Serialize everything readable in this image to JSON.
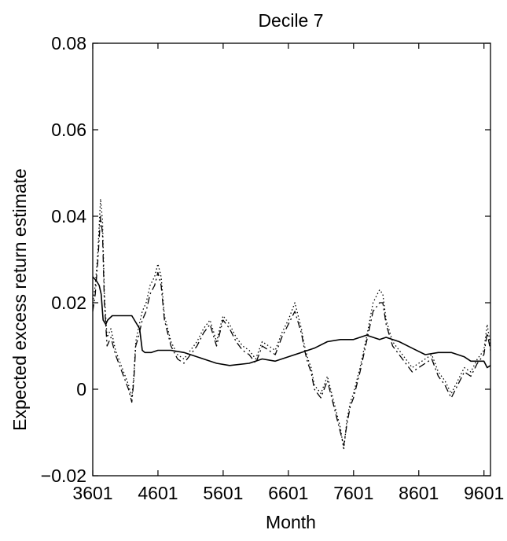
{
  "chart_data": {
    "type": "line",
    "title": "Decile 7",
    "xlabel": "Month",
    "ylabel": "Expected excess return estimate",
    "xlim": [
      3601,
      9701
    ],
    "ylim": [
      -0.02,
      0.08
    ],
    "x_ticks": [
      3601,
      4601,
      5601,
      6601,
      7601,
      8601,
      9601
    ],
    "x_tick_labels": [
      "3601",
      "4601",
      "5601",
      "6601",
      "7601",
      "8601",
      "9601"
    ],
    "y_ticks": [
      -0.02,
      0,
      0.02,
      0.04,
      0.06,
      0.08
    ],
    "y_tick_labels": [
      "−0.02",
      "0",
      "0.02",
      "0.04",
      "0.06",
      "0.08"
    ],
    "grid": false,
    "series": [
      {
        "style": "solid",
        "color": "#000000",
        "x": [
          3601,
          3660,
          3700,
          3730,
          3760,
          3800,
          3830,
          3900,
          4000,
          4100,
          4200,
          4320,
          4360,
          4400,
          4500,
          4600,
          4800,
          5000,
          5100,
          5300,
          5500,
          5700,
          6000,
          6200,
          6400,
          6600,
          6800,
          7000,
          7200,
          7400,
          7600,
          7800,
          8000,
          8100,
          8300,
          8500,
          8700,
          8900,
          9100,
          9300,
          9400,
          9500,
          9600,
          9650,
          9701
        ],
        "y": [
          0.026,
          0.025,
          0.024,
          0.022,
          0.016,
          0.015,
          0.016,
          0.017,
          0.017,
          0.017,
          0.017,
          0.014,
          0.009,
          0.0085,
          0.0085,
          0.009,
          0.009,
          0.0085,
          0.008,
          0.007,
          0.006,
          0.0055,
          0.006,
          0.007,
          0.0065,
          0.0075,
          0.0085,
          0.0095,
          0.011,
          0.0115,
          0.0115,
          0.0125,
          0.0115,
          0.012,
          0.011,
          0.0095,
          0.008,
          0.0085,
          0.0085,
          0.0075,
          0.0065,
          0.0065,
          0.0065,
          0.005,
          0.0055
        ]
      },
      {
        "style": "dash-dot",
        "color": "#000000",
        "x": [
          3601,
          3640,
          3680,
          3720,
          3750,
          3780,
          3820,
          3880,
          3950,
          4050,
          4150,
          4200,
          4230,
          4260,
          4300,
          4360,
          4420,
          4480,
          4550,
          4600,
          4650,
          4700,
          4800,
          4900,
          5000,
          5100,
          5200,
          5300,
          5400,
          5500,
          5600,
          5700,
          5800,
          5900,
          6000,
          6100,
          6200,
          6300,
          6400,
          6500,
          6600,
          6700,
          6800,
          6850,
          6900,
          6950,
          7000,
          7100,
          7200,
          7300,
          7400,
          7450,
          7500,
          7550,
          7600,
          7700,
          7800,
          7900,
          8000,
          8050,
          8100,
          8200,
          8300,
          8400,
          8500,
          8600,
          8700,
          8800,
          8900,
          9000,
          9100,
          9200,
          9300,
          9400,
          9500,
          9600,
          9650,
          9701
        ],
        "y": [
          0.018,
          0.022,
          0.03,
          0.04,
          0.036,
          0.02,
          0.01,
          0.012,
          0.008,
          0.004,
          0.0,
          -0.003,
          0.002,
          0.01,
          0.012,
          0.016,
          0.018,
          0.022,
          0.024,
          0.027,
          0.024,
          0.016,
          0.01,
          0.007,
          0.006,
          0.008,
          0.01,
          0.013,
          0.015,
          0.01,
          0.016,
          0.014,
          0.011,
          0.009,
          0.008,
          0.006,
          0.01,
          0.009,
          0.008,
          0.012,
          0.015,
          0.018,
          0.013,
          0.009,
          0.006,
          0.004,
          0.0,
          -0.002,
          0.002,
          -0.004,
          -0.01,
          -0.013,
          -0.008,
          -0.004,
          -0.002,
          0.004,
          0.011,
          0.018,
          0.02,
          0.02,
          0.015,
          0.01,
          0.008,
          0.006,
          0.004,
          0.005,
          0.006,
          0.007,
          0.003,
          0.001,
          -0.002,
          0.001,
          0.004,
          0.003,
          0.006,
          0.008,
          0.013,
          0.009
        ]
      },
      {
        "style": "dotted",
        "color": "#000000",
        "x": [
          3601,
          3640,
          3680,
          3720,
          3750,
          3780,
          3820,
          3880,
          3950,
          4050,
          4150,
          4200,
          4230,
          4260,
          4300,
          4360,
          4420,
          4480,
          4550,
          4600,
          4650,
          4700,
          4800,
          4900,
          5000,
          5100,
          5200,
          5300,
          5400,
          5500,
          5600,
          5700,
          5800,
          5900,
          6000,
          6100,
          6200,
          6300,
          6400,
          6500,
          6600,
          6700,
          6800,
          6850,
          6900,
          6950,
          7000,
          7100,
          7200,
          7300,
          7400,
          7450,
          7500,
          7550,
          7600,
          7700,
          7800,
          7900,
          8000,
          8050,
          8100,
          8200,
          8300,
          8400,
          8500,
          8600,
          8700,
          8800,
          8900,
          9000,
          9100,
          9200,
          9300,
          9400,
          9500,
          9600,
          9650,
          9701
        ],
        "y": [
          0.02,
          0.024,
          0.032,
          0.044,
          0.039,
          0.022,
          0.012,
          0.014,
          0.009,
          0.005,
          0.001,
          -0.002,
          0.003,
          0.011,
          0.014,
          0.018,
          0.02,
          0.024,
          0.026,
          0.029,
          0.026,
          0.017,
          0.011,
          0.008,
          0.007,
          0.009,
          0.011,
          0.014,
          0.016,
          0.011,
          0.017,
          0.015,
          0.012,
          0.01,
          0.009,
          0.007,
          0.011,
          0.01,
          0.009,
          0.013,
          0.016,
          0.02,
          0.014,
          0.01,
          0.007,
          0.005,
          0.001,
          -0.001,
          0.003,
          -0.003,
          -0.009,
          -0.014,
          -0.007,
          -0.003,
          -0.001,
          0.005,
          0.012,
          0.02,
          0.023,
          0.022,
          0.016,
          0.011,
          0.009,
          0.007,
          0.005,
          0.006,
          0.007,
          0.008,
          0.004,
          0.002,
          -0.001,
          0.002,
          0.005,
          0.004,
          0.007,
          0.009,
          0.015,
          0.01
        ]
      }
    ]
  }
}
